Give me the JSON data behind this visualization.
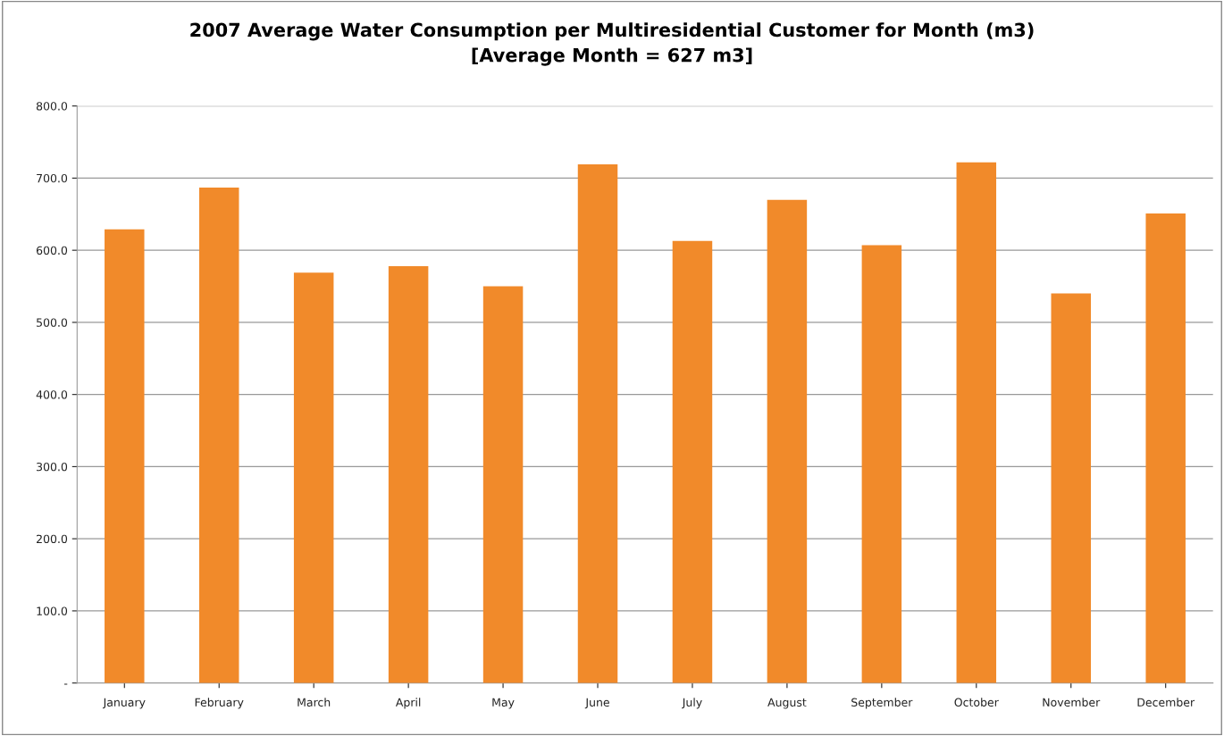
{
  "chart_data": {
    "type": "bar",
    "title": "2007 Average Water Consumption per Multiresidential Customer for Month (m3)\n[Average Month = 627 m3]",
    "categories": [
      "January",
      "February",
      "March",
      "April",
      "May",
      "June",
      "July",
      "August",
      "September",
      "October",
      "November",
      "December"
    ],
    "values": [
      629,
      687,
      569,
      578,
      550,
      719,
      613,
      670,
      607,
      722,
      540,
      651
    ],
    "color": "#f18a2a",
    "ylim": [
      0,
      800
    ],
    "yticks": [
      {
        "value": 0,
        "label": "-"
      },
      {
        "value": 100,
        "label": "100.0"
      },
      {
        "value": 200,
        "label": "200.0"
      },
      {
        "value": 300,
        "label": "300.0"
      },
      {
        "value": 400,
        "label": "400.0"
      },
      {
        "value": 500,
        "label": "500.0"
      },
      {
        "value": 600,
        "label": "600.0"
      },
      {
        "value": 700,
        "label": "700.0"
      },
      {
        "value": 800,
        "label": "800.0"
      }
    ],
    "grid": "y"
  }
}
